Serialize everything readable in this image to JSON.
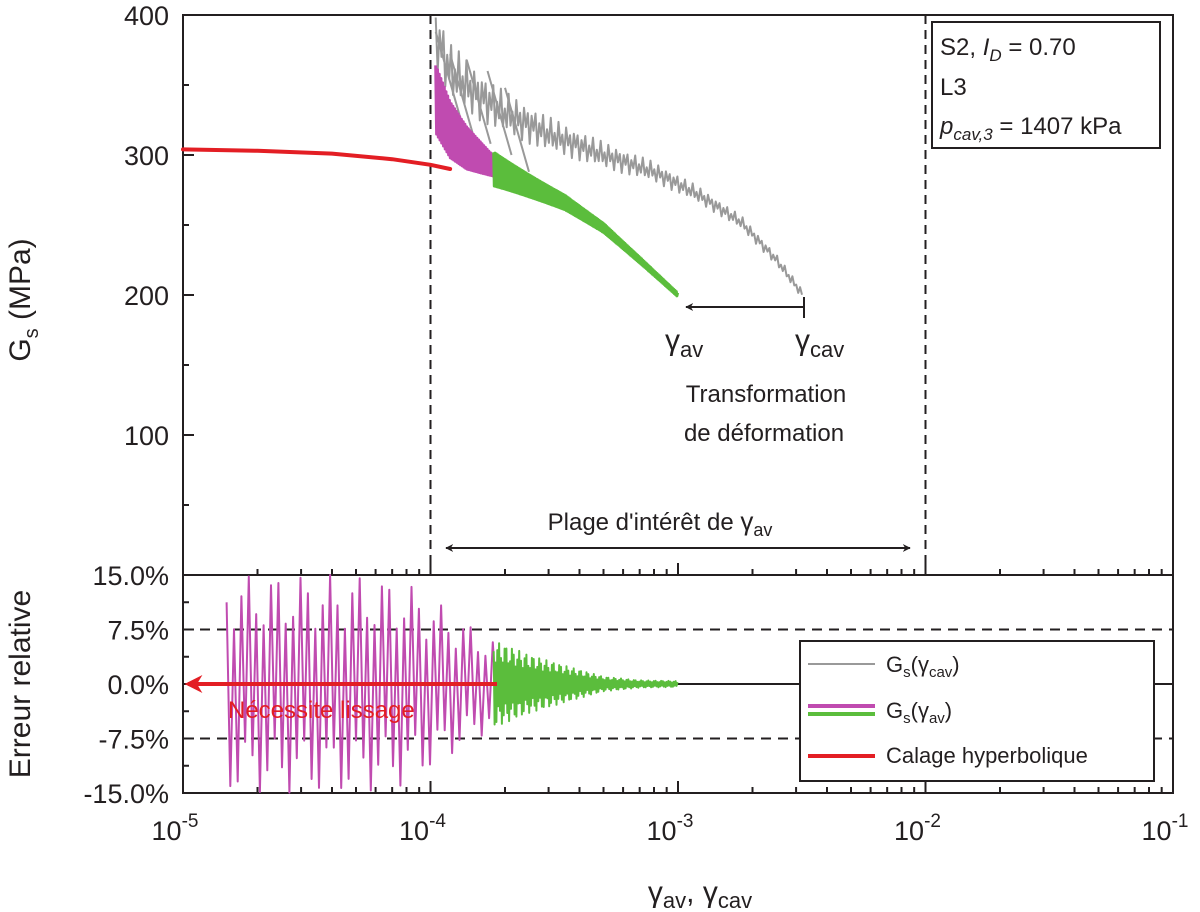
{
  "chart_data": [
    {
      "id": "top",
      "type": "line",
      "xscale": "log",
      "xlim": [
        1e-05,
        0.1
      ],
      "ylim": [
        0,
        400
      ],
      "ylabel": "G",
      "ylabel_sub": "s",
      "ylabel_suffix": " (MPa)",
      "yticks": [
        {
          "value": 100,
          "label": "100"
        },
        {
          "value": 200,
          "label": "200"
        },
        {
          "value": 300,
          "label": "300"
        },
        {
          "value": 400,
          "label": "400"
        }
      ],
      "vlines": [
        0.0001,
        0.01
      ],
      "info_box": {
        "line1_prefix": "S2, ",
        "line1_var": "I",
        "line1_sub": "D",
        "line1_suffix": " = 0.70",
        "line2": "L3",
        "line3_var": "p",
        "line3_sub": "cav,3",
        "line3_suffix": " = 1407 kPa"
      },
      "annotations": {
        "gamma": "γ",
        "gamma_av_sub": "av",
        "gamma_cav_sub": "cav",
        "transformation_line1": "Transformation",
        "transformation_line2": "de déformation",
        "range_text": "Plage d'intérêt de ",
        "range_gamma": "γ",
        "range_gamma_sub": "av"
      },
      "series": [
        {
          "name": "Calage hyperbolique",
          "color": "#e31e24",
          "x": [
            1e-05,
            2e-05,
            4e-05,
            7e-05,
            0.0001,
            0.00012
          ],
          "y": [
            304,
            303,
            301,
            297,
            293,
            290
          ]
        },
        {
          "name": "Gs(γcav)",
          "color": "#999999",
          "x": [
            0.000105,
            0.00012,
            0.00015,
            0.0002,
            0.0003,
            0.0005,
            0.0008,
            0.0012,
            0.0018,
            0.0025,
            0.0032
          ],
          "y": [
            385,
            360,
            345,
            330,
            315,
            300,
            288,
            272,
            252,
            225,
            200
          ]
        },
        {
          "name": "Gs(γav)",
          "color": "#c04bb0",
          "x": [
            0.000105,
            0.00012,
            0.00014,
            0.00016,
            0.00018
          ],
          "y": [
            340,
            318,
            305,
            298,
            292
          ]
        },
        {
          "name": "Gs(γav)",
          "color": "#5bbd3c",
          "x": [
            0.00018,
            0.00025,
            0.00035,
            0.0005,
            0.0007,
            0.001
          ],
          "y": [
            290,
            278,
            266,
            248,
            225,
            200
          ]
        }
      ]
    },
    {
      "id": "bottom",
      "type": "line",
      "xscale": "log",
      "xlim": [
        1e-05,
        0.1
      ],
      "ylim": [
        -15,
        15
      ],
      "ylabel": "Erreur relative",
      "xlabel_gamma": "γ",
      "xlabel_sub_av": "av",
      "xlabel_sep": ", ",
      "xlabel_sub_cav": "cav",
      "yticks": [
        {
          "value": 15,
          "label": "15.0%"
        },
        {
          "value": 7.5,
          "label": "7.5%"
        },
        {
          "value": 0,
          "label": "0.0%"
        },
        {
          "value": -7.5,
          "label": "-7.5%"
        },
        {
          "value": -15,
          "label": "-15.0%"
        }
      ],
      "xticks": [
        {
          "value": 1e-05,
          "base": "10",
          "exp": "-5"
        },
        {
          "value": 0.0001,
          "base": "10",
          "exp": "-4"
        },
        {
          "value": 0.001,
          "base": "10",
          "exp": "-3"
        },
        {
          "value": 0.01,
          "base": "10",
          "exp": "-2"
        },
        {
          "value": 0.1,
          "base": "10",
          "exp": "-1"
        }
      ],
      "hlines": [
        7.5,
        0,
        -7.5
      ],
      "annotations": {
        "smoothing": "Nécessite lissage"
      },
      "legend": [
        {
          "label_main": "G",
          "label_sub": "s",
          "label_open": "(",
          "label_gamma": "γ",
          "label_gsub": "cav",
          "label_close": ")",
          "colors": [
            "#999999"
          ]
        },
        {
          "label_main": "G",
          "label_sub": "s",
          "label_open": "(",
          "label_gamma": "γ",
          "label_gsub": "av",
          "label_close": ")",
          "colors": [
            "#c04bb0",
            "#5bbd3c"
          ]
        },
        {
          "label_plain": "Calage hyperbolique",
          "colors": [
            "#e31e24"
          ]
        }
      ],
      "legend_position": "lower-right",
      "series": [
        {
          "name": "Gs(γav) error (magenta)",
          "color": "#c04bb0",
          "x": [
            1.5e-05,
            2e-05,
            3e-05,
            5e-05,
            8e-05,
            0.00012,
            0.00018
          ],
          "y_envelope": [
            15,
            15,
            15,
            15,
            14,
            10,
            6
          ]
        },
        {
          "name": "Gs(γav) error (green)",
          "color": "#5bbd3c",
          "x": [
            0.00018,
            0.00025,
            0.00035,
            0.0005,
            0.0007,
            0.001
          ],
          "y_envelope": [
            6,
            4,
            2.5,
            1,
            0.5,
            0.4
          ]
        }
      ]
    }
  ]
}
